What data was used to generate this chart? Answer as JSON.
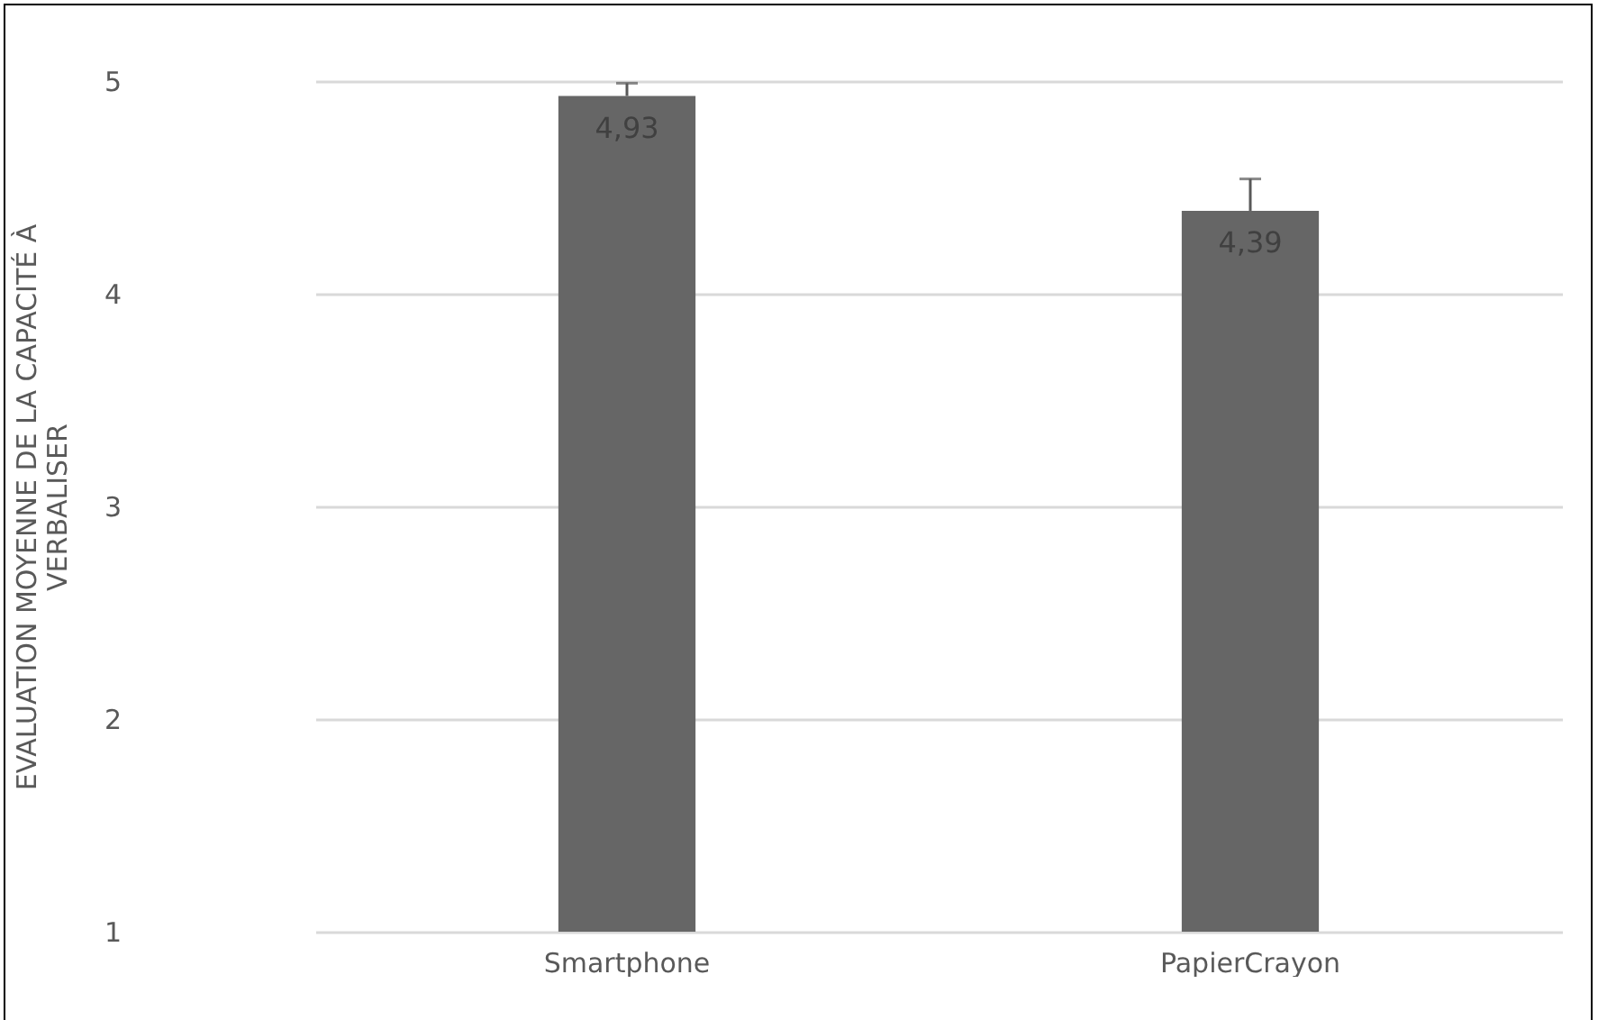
{
  "chart_data": {
    "type": "bar",
    "ylabel": "EVALUATION MOYENNE DE  LA CAPACITÉ À VERBALISER",
    "categories": [
      "Smartphone",
      "PapierCrayon"
    ],
    "values": [
      4.93,
      4.39
    ],
    "errors": [
      [
        4.93,
        4.99
      ],
      [
        4.39,
        4.54
      ]
    ],
    "value_labels": [
      "4,93",
      "4,39"
    ],
    "color": "#666666",
    "ylim": [
      1,
      5
    ],
    "yticks": [
      1,
      2,
      3,
      4,
      5
    ],
    "grid": "y"
  }
}
